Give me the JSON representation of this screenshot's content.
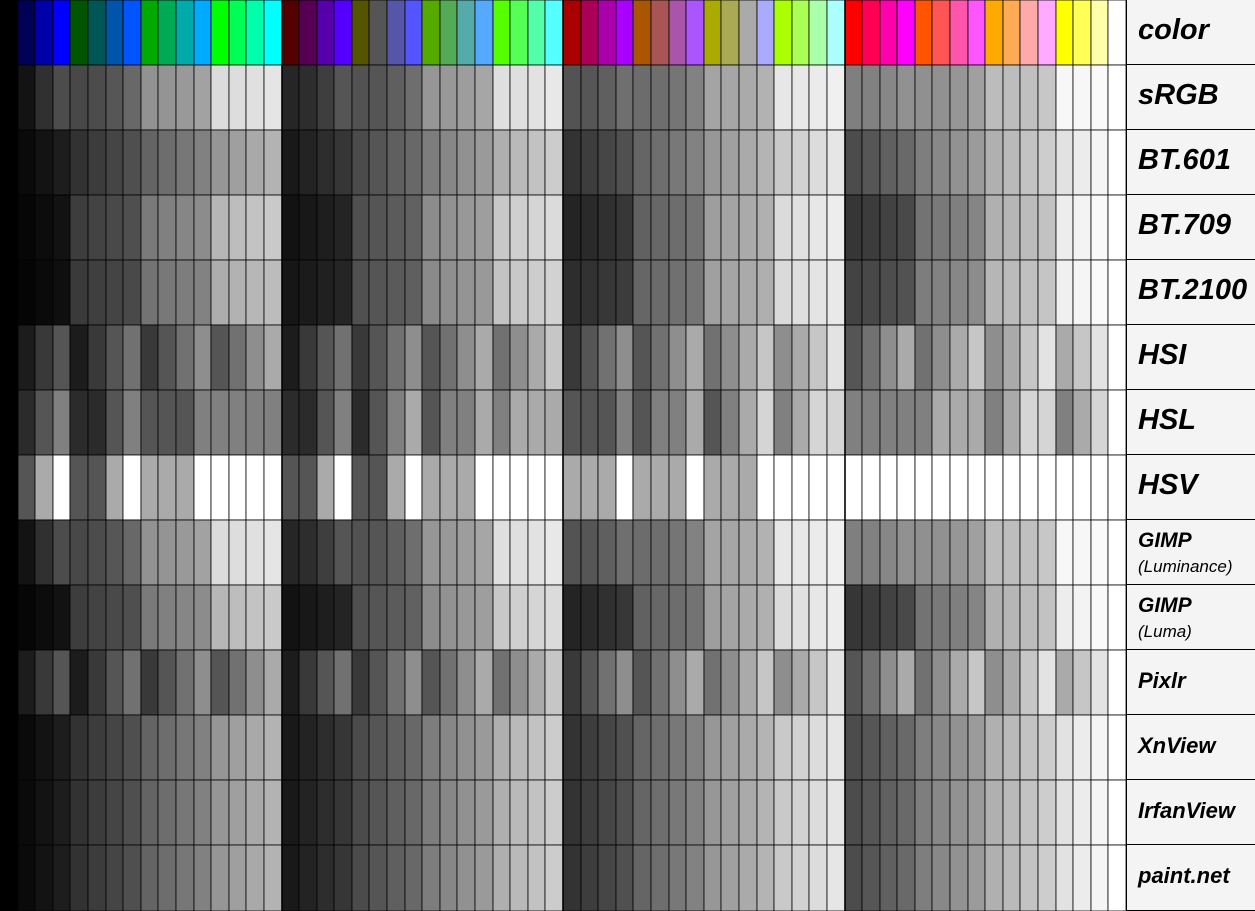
{
  "rows": [
    {
      "label": "color",
      "method": "color"
    },
    {
      "label": "sRGB",
      "method": "srgb"
    },
    {
      "label": "BT.601",
      "method": "bt601"
    },
    {
      "label": "BT.709",
      "method": "bt709"
    },
    {
      "label": "BT.2100",
      "method": "bt2100"
    },
    {
      "label": "HSI",
      "method": "hsi"
    },
    {
      "label": "HSL",
      "method": "hsl"
    },
    {
      "label": "HSV",
      "method": "hsv"
    },
    {
      "label": "GIMP",
      "sublabel": "(Luminance)",
      "method": "gimplum"
    },
    {
      "label": "GIMP",
      "sublabel": "(Luma)",
      "method": "gimpluma"
    },
    {
      "label": "Pixlr",
      "method": "pixlr"
    },
    {
      "label": "XnView",
      "method": "xnview"
    },
    {
      "label": "IrfanView",
      "method": "irfan"
    },
    {
      "label": "paint.net",
      "method": "paintnet"
    }
  ],
  "palette": {
    "channel_levels": [
      0,
      85,
      170,
      255
    ],
    "order": "red-major, green-middle, blue-minor (64 colors)"
  }
}
